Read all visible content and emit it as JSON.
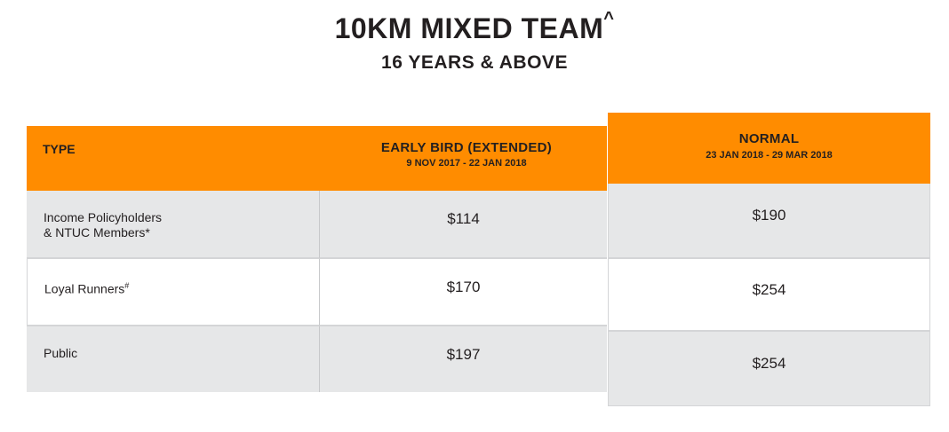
{
  "heading": {
    "title": "10KM MIXED TEAM",
    "title_mark": "^",
    "subtitle": "16 YEARS & ABOVE"
  },
  "table": {
    "headers": {
      "type": "TYPE",
      "early_bird": "EARLY BIRD (EXTENDED)",
      "early_bird_dates": "9 NOV 2017 - 22 JAN 2018",
      "normal": "NORMAL",
      "normal_dates": "23 JAN 2018 - 29 MAR 2018"
    },
    "rows": [
      {
        "type_line1": "Income Policyholders",
        "type_line2": "& NTUC Members*",
        "early_bird": "$114",
        "normal": "$190"
      },
      {
        "type_line1": "Loyal Runners",
        "type_mark": "#",
        "early_bird": "$170",
        "normal": "$254"
      },
      {
        "type_line1": "Public",
        "early_bird": "$197",
        "normal": "$254"
      }
    ]
  },
  "colors": {
    "header_orange": "#ff8c00",
    "row_gray": "#e6e7e8",
    "text_dark": "#231f20"
  }
}
